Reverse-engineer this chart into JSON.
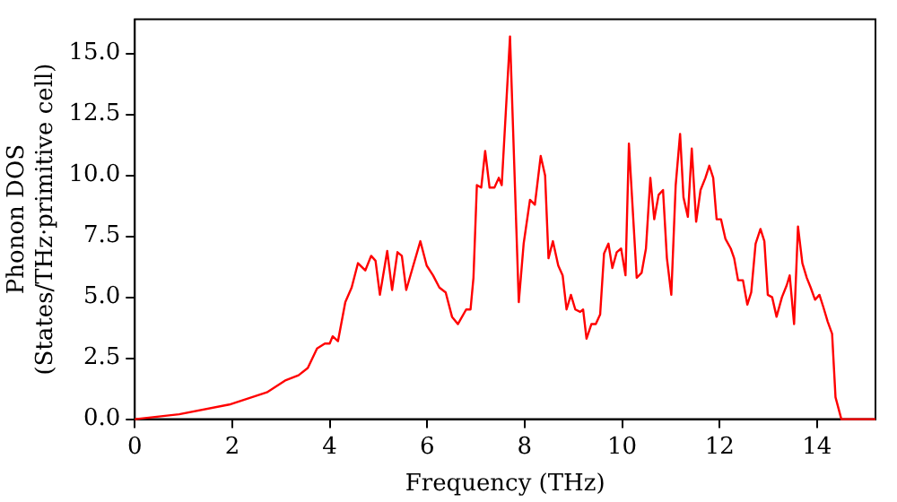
{
  "chart_data": {
    "type": "line",
    "xlabel": "Frequency (THz)",
    "ylabel": "Phonon DOS\n(States/THz·primitive cell)",
    "xlim": [
      0,
      15.2
    ],
    "xticks": [
      0,
      2,
      4,
      6,
      8,
      10,
      12,
      14
    ],
    "ylim": [
      0,
      16.4
    ],
    "yticks": [
      {
        "value": 0,
        "label": "0.0"
      },
      {
        "value": 2.5,
        "label": "2.5"
      },
      {
        "value": 5,
        "label": "5.0"
      },
      {
        "value": 7.5,
        "label": "7.5"
      },
      {
        "value": 10,
        "label": "10.0"
      },
      {
        "value": 12.5,
        "label": "12.5"
      },
      {
        "value": 15,
        "label": "15.0"
      }
    ],
    "grid": false,
    "legend": false,
    "marker": "none",
    "line_style": "solid",
    "series": [
      {
        "color": "#ff0000",
        "x": [
          0,
          0.91,
          1.94,
          2.71,
          3.1,
          3.36,
          3.55,
          3.74,
          3.9,
          4.0,
          4.06,
          4.17,
          4.32,
          4.45,
          4.58,
          4.73,
          4.85,
          4.94,
          5.03,
          5.18,
          5.28,
          5.39,
          5.48,
          5.57,
          5.7,
          5.86,
          5.99,
          6.12,
          6.25,
          6.38,
          6.51,
          6.63,
          6.8,
          6.89,
          6.95,
          7.02,
          7.11,
          7.19,
          7.28,
          7.38,
          7.47,
          7.53,
          7.7,
          7.88,
          7.98,
          8.11,
          8.21,
          8.33,
          8.42,
          8.49,
          8.58,
          8.69,
          8.78,
          8.86,
          8.95,
          9.04,
          9.14,
          9.2,
          9.27,
          9.37,
          9.46,
          9.55,
          9.63,
          9.72,
          9.8,
          9.89,
          9.98,
          10.07,
          10.14,
          10.3,
          10.4,
          10.49,
          10.58,
          10.66,
          10.75,
          10.84,
          10.92,
          11.01,
          11.1,
          11.19,
          11.26,
          11.35,
          11.43,
          11.52,
          11.61,
          11.71,
          11.79,
          11.87,
          11.94,
          12.03,
          12.12,
          12.23,
          12.3,
          12.38,
          12.48,
          12.57,
          12.65,
          12.74,
          12.84,
          12.92,
          12.99,
          13.08,
          13.17,
          13.28,
          13.38,
          13.44,
          13.53,
          13.61,
          13.7,
          13.79,
          13.87,
          13.96,
          14.05,
          14.13,
          14.22,
          14.31,
          14.38,
          14.5,
          15.2
        ],
        "values": [
          0,
          0.2,
          0.6,
          1.1,
          1.6,
          1.8,
          2.1,
          2.9,
          3.1,
          3.1,
          3.4,
          3.2,
          4.8,
          5.4,
          6.4,
          6.1,
          6.7,
          6.5,
          5.1,
          6.9,
          5.3,
          6.85,
          6.7,
          5.3,
          6.2,
          7.3,
          6.3,
          5.9,
          5.4,
          5.2,
          4.2,
          3.9,
          4.5,
          4.5,
          5.8,
          9.6,
          9.5,
          11.0,
          9.5,
          9.5,
          9.9,
          9.6,
          15.7,
          4.8,
          7.2,
          9.0,
          8.8,
          10.8,
          10.0,
          6.6,
          7.3,
          6.3,
          5.9,
          4.5,
          5.1,
          4.5,
          4.4,
          4.5,
          3.3,
          3.9,
          3.9,
          4.3,
          6.8,
          7.2,
          6.2,
          6.85,
          7.0,
          5.9,
          11.3,
          5.8,
          6.0,
          7.0,
          9.9,
          8.2,
          9.2,
          9.4,
          6.6,
          5.1,
          9.6,
          11.7,
          9.1,
          8.3,
          11.1,
          8.1,
          9.4,
          9.9,
          10.4,
          9.9,
          8.2,
          8.2,
          7.4,
          7.0,
          6.6,
          5.7,
          5.7,
          4.7,
          5.2,
          7.2,
          7.8,
          7.3,
          5.1,
          5.0,
          4.2,
          5.0,
          5.5,
          5.9,
          3.9,
          7.9,
          6.4,
          5.8,
          5.4,
          4.9,
          5.1,
          4.6,
          4.0,
          3.5,
          0.9,
          0,
          0
        ]
      }
    ]
  }
}
